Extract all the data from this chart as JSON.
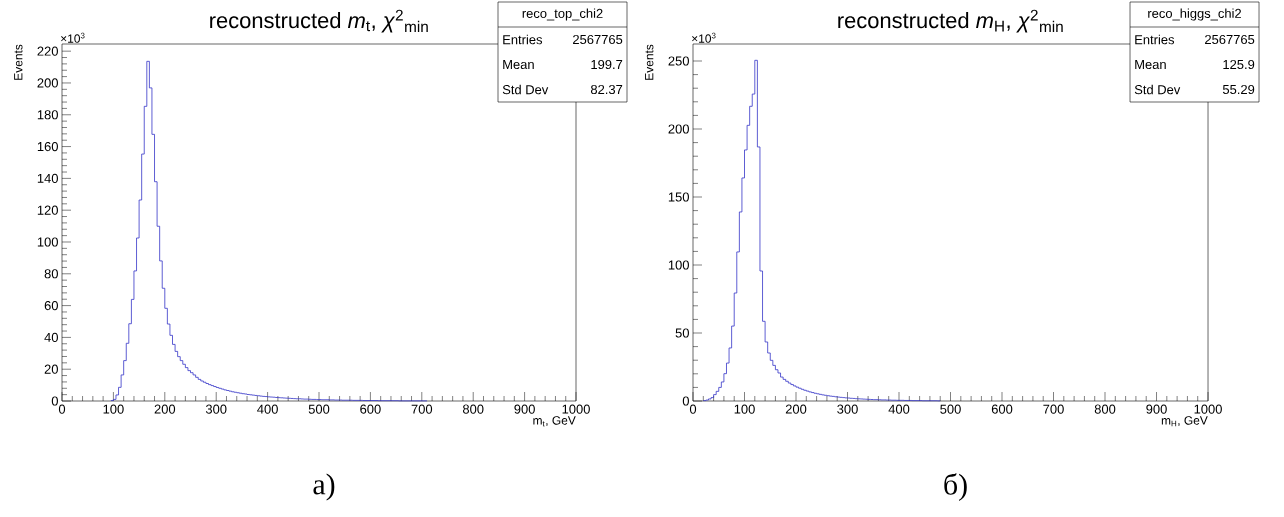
{
  "chart_data": [
    {
      "type": "histogram",
      "title": "reconstructed *m*$_{t}$, *χ*$^{2}$$_{min}$",
      "xlabel": "m$_{t}$, GeV",
      "ylabel": "Events",
      "color": "#3535c8",
      "grid": false,
      "bins": [
        95,
        100,
        105,
        110,
        115,
        120,
        125,
        130,
        135,
        140,
        145,
        150,
        155,
        160,
        165,
        170,
        175,
        180,
        185,
        190,
        195,
        200,
        205,
        210,
        215,
        220,
        225,
        230,
        235,
        240,
        245,
        250,
        255,
        260,
        265,
        270,
        275,
        280,
        285,
        290,
        295,
        300,
        305,
        310,
        315,
        320,
        325,
        330,
        335,
        340,
        345,
        350,
        355,
        360,
        365,
        370,
        375,
        380,
        385,
        390,
        395,
        400,
        405,
        410,
        415,
        420,
        425,
        430,
        435,
        440,
        445,
        450,
        455,
        460,
        465,
        470,
        475,
        480,
        485,
        490,
        495,
        500,
        505,
        510,
        515,
        520,
        525,
        530,
        535,
        540,
        545,
        550,
        555,
        560,
        565,
        570,
        575,
        580,
        585,
        590,
        595,
        600,
        605,
        610,
        615,
        620,
        625,
        630,
        635,
        640,
        645,
        650,
        655,
        660,
        665,
        670,
        675,
        680,
        685,
        690,
        695,
        700,
        705,
        710
      ],
      "values": [
        0.3,
        1.0,
        3.8,
        8.6,
        16.4,
        25.4,
        36.3,
        48.6,
        63.9,
        81.8,
        102.5,
        126.4,
        155.3,
        185.3,
        213.6,
        196.9,
        167.7,
        137.9,
        109.9,
        88.1,
        70.9,
        58.3,
        48.4,
        41.3,
        35.6,
        31.2,
        27.9,
        25.4,
        23.1,
        21.0,
        19.1,
        17.8,
        16.4,
        14.9,
        13.6,
        12.6,
        11.8,
        11.0,
        10.3,
        9.7,
        9.1,
        8.5,
        8.0,
        7.5,
        7.0,
        6.6,
        6.2,
        5.8,
        5.5,
        5.2,
        4.9,
        4.6,
        4.4,
        4.1,
        3.9,
        3.7,
        3.5,
        3.3,
        3.1,
        2.9,
        2.8,
        2.6,
        2.5,
        2.4,
        2.2,
        2.1,
        2.0,
        1.9,
        1.8,
        1.7,
        1.6,
        1.5,
        1.4,
        1.4,
        1.3,
        1.2,
        1.2,
        1.1,
        1.0,
        1.0,
        0.9,
        0.9,
        0.8,
        0.8,
        0.8,
        0.7,
        0.7,
        0.6,
        0.6,
        0.6,
        0.5,
        0.5,
        0.5,
        0.5,
        0.4,
        0.4,
        0.4,
        0.4,
        0.3,
        0.3,
        0.3,
        0.3,
        0.3,
        0.3,
        0.2,
        0.2,
        0.2,
        0.2,
        0.2,
        0.2,
        0.2,
        0.2,
        0.1,
        0.1,
        0.1,
        0.1,
        0.1,
        0.1,
        0.1,
        0.1,
        0.1,
        0.1,
        0.1
      ],
      "xlim": [
        0,
        1000
      ],
      "ylim": [
        0,
        224.5
      ],
      "xticks": [
        0,
        100,
        200,
        300,
        400,
        500,
        600,
        700,
        800,
        900,
        1000
      ],
      "yticks": [
        0,
        20,
        40,
        60,
        80,
        100,
        120,
        140,
        160,
        180,
        200,
        220
      ],
      "annotations": [
        "×10$^{3}$",
        "reco_top_chi2",
        "Entries",
        "2567765",
        "Mean",
        "199.7",
        "Std Dev",
        "82.37",
        "а)"
      ]
    },
    {
      "type": "histogram",
      "title": "reconstructed *m*$_{H}$, *χ*$^{2}$$_{min}$",
      "xlabel": "m$_{H}$, GeV",
      "ylabel": "Events",
      "color": "#3535c8",
      "grid": false,
      "bins": [
        20,
        25,
        30,
        35,
        40,
        45,
        50,
        55,
        60,
        65,
        70,
        75,
        80,
        85,
        90,
        95,
        100,
        105,
        110,
        115,
        120,
        125,
        130,
        135,
        140,
        145,
        150,
        155,
        160,
        165,
        170,
        175,
        180,
        185,
        190,
        195,
        200,
        205,
        210,
        215,
        220,
        225,
        230,
        235,
        240,
        245,
        250,
        255,
        260,
        265,
        270,
        275,
        280,
        285,
        290,
        295,
        300,
        305,
        310,
        315,
        320,
        325,
        330,
        335,
        340,
        345,
        350,
        355,
        360,
        365,
        370,
        375,
        380,
        385,
        390,
        395,
        400,
        405,
        410,
        415,
        420,
        425,
        430,
        435,
        440,
        445,
        450,
        455,
        460,
        465,
        470,
        475,
        480
      ],
      "values": [
        0.3,
        0.7,
        1.5,
        2.5,
        4.7,
        7.1,
        10.0,
        14.0,
        20.1,
        27.9,
        39.0,
        55.1,
        79.4,
        109.6,
        139.0,
        164.0,
        184.6,
        202.7,
        216.7,
        225.7,
        250.5,
        186.8,
        95.6,
        58.6,
        43.4,
        35.3,
        29.9,
        26.2,
        23.0,
        20.6,
        17.6,
        15.9,
        14.5,
        13.2,
        12.1,
        11.1,
        10.2,
        9.4,
        8.6,
        7.9,
        7.3,
        6.7,
        6.2,
        5.7,
        5.3,
        4.9,
        4.5,
        4.2,
        3.9,
        3.6,
        3.4,
        3.1,
        2.9,
        2.7,
        2.5,
        2.3,
        2.2,
        2.0,
        1.9,
        1.7,
        1.6,
        1.5,
        1.4,
        1.3,
        1.2,
        1.1,
        1.0,
        1.0,
        0.9,
        0.8,
        0.8,
        0.7,
        0.7,
        0.6,
        0.6,
        0.5,
        0.5,
        0.5,
        0.4,
        0.4,
        0.4,
        0.3,
        0.3,
        0.3,
        0.3,
        0.2,
        0.2,
        0.2,
        0.2,
        0.2,
        0.2,
        0.1
      ],
      "xlim": [
        0,
        1000
      ],
      "ylim": [
        0,
        262.5
      ],
      "xticks": [
        0,
        100,
        200,
        300,
        400,
        500,
        600,
        700,
        800,
        900,
        1000
      ],
      "yticks": [
        0,
        50,
        100,
        150,
        200,
        250
      ],
      "annotations": [
        "×10$^{3}$",
        "reco_higgs_chi2",
        "Entries",
        "2567765",
        "Mean",
        "125.9",
        "Std Dev",
        "55.29",
        "б)"
      ]
    }
  ]
}
